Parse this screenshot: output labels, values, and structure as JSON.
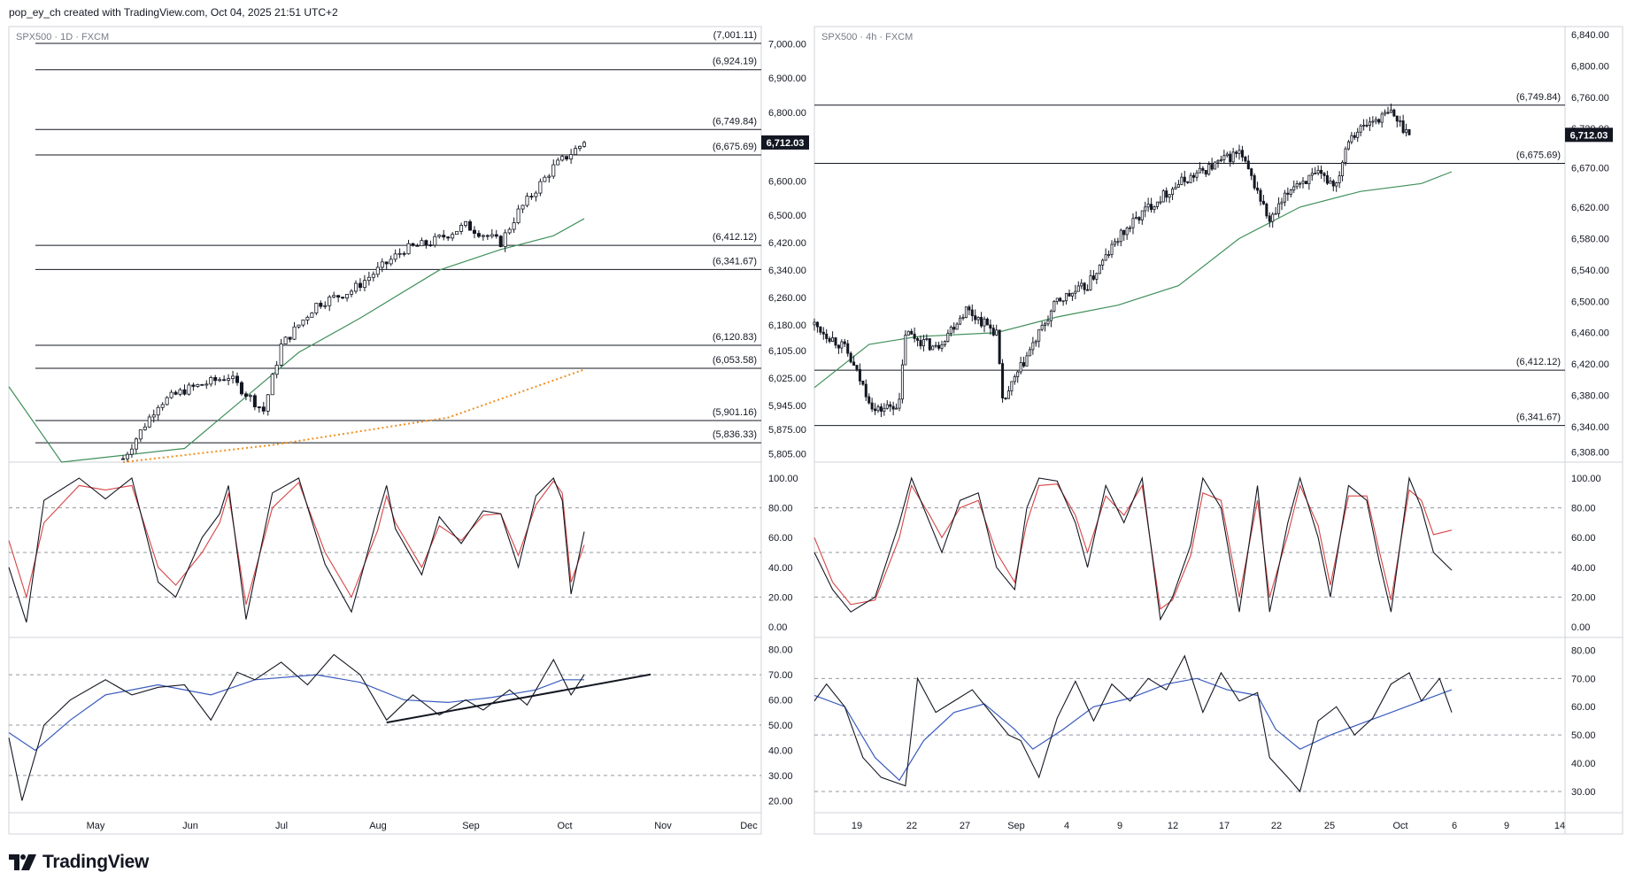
{
  "header": {
    "text": "pop_ey_ch created with TradingView.com, Oct 04, 2025 21:51 UTC+2"
  },
  "brand": {
    "name": "TradingView"
  },
  "colors": {
    "stoch_k": "#131722",
    "stoch_d": "#d64545",
    "rsi": "#131722",
    "rsi_ma": "#3a5bbf",
    "ma50": "#3f8f5a",
    "ma200": "#f0901e",
    "last_label_bg": "#131722"
  },
  "chart_data": [
    {
      "type": "candlestick",
      "title": "SPX500 · 1D · FXCM",
      "price_axis": {
        "range": [
          5780,
          7050
        ],
        "ticks": [
          "7,000.00",
          "6,900.00",
          "6,800.00",
          "6,600.00",
          "6,500.00",
          "6,420.00",
          "6,340.00",
          "6,260.00",
          "6,180.00",
          "6,105.00",
          "6,025.00",
          "5,945.00",
          "5,875.00",
          "5,805.00"
        ]
      },
      "last_price": "6,712.03",
      "horizontal_levels": [
        "(7,001.11)",
        "(6,924.19)",
        "(6,749.84)",
        "(6,675.69)",
        "(6,412.12)",
        "(6,341.67)",
        "(6,120.83)",
        "(6,053.58)",
        "(5,901.16)",
        "(5,836.33)"
      ],
      "ma50_points": [
        [
          0,
          6000
        ],
        [
          12,
          5780
        ],
        [
          40,
          5820
        ],
        [
          66,
          6100
        ],
        [
          80,
          6200
        ],
        [
          98,
          6340
        ],
        [
          112,
          6400
        ],
        [
          124,
          6440
        ],
        [
          131,
          6490
        ]
      ],
      "ma200_points": [
        [
          26,
          5780
        ],
        [
          60,
          5830
        ],
        [
          100,
          5910
        ],
        [
          131,
          6050
        ]
      ],
      "x_labels": [
        "May",
        "Jun",
        "Jul",
        "Aug",
        "Sep",
        "Oct",
        "Nov",
        "Dec"
      ],
      "stochastic": {
        "levels": [
          20,
          50,
          80
        ],
        "ticks": [
          "100.00",
          "80.00",
          "60.00",
          "40.00",
          "20.00",
          "0.00"
        ],
        "k_points": [
          [
            0,
            40
          ],
          [
            4,
            3
          ],
          [
            8,
            85
          ],
          [
            16,
            100
          ],
          [
            22,
            86
          ],
          [
            28,
            100
          ],
          [
            34,
            30
          ],
          [
            38,
            20
          ],
          [
            44,
            60
          ],
          [
            48,
            76
          ],
          [
            50,
            95
          ],
          [
            54,
            5
          ],
          [
            60,
            90
          ],
          [
            66,
            100
          ],
          [
            72,
            42
          ],
          [
            78,
            10
          ],
          [
            84,
            75
          ],
          [
            86,
            95
          ],
          [
            88,
            66
          ],
          [
            94,
            35
          ],
          [
            98,
            74
          ],
          [
            103,
            56
          ],
          [
            108,
            78
          ],
          [
            112,
            76
          ],
          [
            116,
            40
          ],
          [
            120,
            88
          ],
          [
            124,
            100
          ],
          [
            126,
            85
          ],
          [
            128,
            22
          ],
          [
            131,
            64
          ]
        ],
        "d_points": [
          [
            0,
            58
          ],
          [
            4,
            20
          ],
          [
            8,
            70
          ],
          [
            16,
            95
          ],
          [
            22,
            92
          ],
          [
            28,
            95
          ],
          [
            34,
            40
          ],
          [
            38,
            28
          ],
          [
            44,
            50
          ],
          [
            48,
            70
          ],
          [
            50,
            90
          ],
          [
            54,
            15
          ],
          [
            60,
            80
          ],
          [
            66,
            97
          ],
          [
            72,
            50
          ],
          [
            78,
            20
          ],
          [
            84,
            65
          ],
          [
            86,
            88
          ],
          [
            88,
            70
          ],
          [
            94,
            40
          ],
          [
            98,
            68
          ],
          [
            103,
            58
          ],
          [
            108,
            75
          ],
          [
            112,
            76
          ],
          [
            116,
            48
          ],
          [
            120,
            82
          ],
          [
            124,
            98
          ],
          [
            126,
            90
          ],
          [
            128,
            30
          ],
          [
            131,
            55
          ]
        ]
      },
      "rsi": {
        "levels": [
          30,
          50,
          70
        ],
        "ticks": [
          "80.00",
          "70.00",
          "60.00",
          "50.00",
          "40.00",
          "30.00",
          "20.00"
        ],
        "rsi_points": [
          [
            0,
            45
          ],
          [
            3,
            20
          ],
          [
            8,
            50
          ],
          [
            14,
            60
          ],
          [
            22,
            68
          ],
          [
            28,
            62
          ],
          [
            34,
            65
          ],
          [
            40,
            66
          ],
          [
            46,
            52
          ],
          [
            52,
            71
          ],
          [
            56,
            68
          ],
          [
            62,
            75
          ],
          [
            68,
            66
          ],
          [
            74,
            78
          ],
          [
            80,
            70
          ],
          [
            86,
            52
          ],
          [
            92,
            62
          ],
          [
            98,
            54
          ],
          [
            104,
            60
          ],
          [
            108,
            56
          ],
          [
            114,
            64
          ],
          [
            118,
            58
          ],
          [
            124,
            76
          ],
          [
            128,
            62
          ],
          [
            131,
            70
          ]
        ],
        "ma_points": [
          [
            0,
            47
          ],
          [
            6,
            40
          ],
          [
            14,
            52
          ],
          [
            22,
            62
          ],
          [
            34,
            66
          ],
          [
            46,
            62
          ],
          [
            56,
            68
          ],
          [
            70,
            70
          ],
          [
            80,
            67
          ],
          [
            90,
            60
          ],
          [
            100,
            59
          ],
          [
            110,
            61
          ],
          [
            120,
            64
          ],
          [
            126,
            68
          ],
          [
            131,
            68
          ]
        ],
        "trendline_points": [
          [
            86,
            51
          ],
          [
            130,
            65
          ]
        ]
      }
    },
    {
      "type": "candlestick",
      "title": "SPX500 · 4h · FXCM",
      "price_axis": {
        "range": [
          6295,
          6850
        ],
        "ticks": [
          "6,840.00",
          "6,800.00",
          "6,760.00",
          "6,720.00",
          "6,670.00",
          "6,620.00",
          "6,580.00",
          "6,540.00",
          "6,500.00",
          "6,460.00",
          "6,420.00",
          "6,380.00",
          "6,340.00",
          "6,308.00"
        ]
      },
      "last_price": "6,712.03",
      "horizontal_levels": [
        "(6,749.84)",
        "(6,675.69)",
        "(6,412.12)",
        "(6,341.67)"
      ],
      "ma50_points": [
        [
          0,
          6390
        ],
        [
          18,
          6445
        ],
        [
          34,
          6455
        ],
        [
          60,
          6460
        ],
        [
          80,
          6480
        ],
        [
          100,
          6495
        ],
        [
          120,
          6520
        ],
        [
          140,
          6580
        ],
        [
          160,
          6620
        ],
        [
          180,
          6640
        ],
        [
          200,
          6650
        ],
        [
          210,
          6665
        ]
      ],
      "x_labels": [
        "19",
        "22",
        "27",
        "Sep",
        "4",
        "9",
        "12",
        "17",
        "22",
        "25",
        "Oct",
        "6",
        "9",
        "14"
      ],
      "stochastic": {
        "levels": [
          20,
          50,
          80
        ],
        "ticks": [
          "100.00",
          "80.00",
          "60.00",
          "40.00",
          "20.00",
          "0.00"
        ],
        "k_points": [
          [
            0,
            50
          ],
          [
            6,
            25
          ],
          [
            12,
            10
          ],
          [
            20,
            20
          ],
          [
            28,
            70
          ],
          [
            32,
            100
          ],
          [
            38,
            70
          ],
          [
            42,
            50
          ],
          [
            48,
            85
          ],
          [
            54,
            90
          ],
          [
            60,
            40
          ],
          [
            66,
            25
          ],
          [
            70,
            80
          ],
          [
            74,
            100
          ],
          [
            80,
            98
          ],
          [
            86,
            70
          ],
          [
            90,
            40
          ],
          [
            96,
            95
          ],
          [
            102,
            70
          ],
          [
            108,
            100
          ],
          [
            114,
            5
          ],
          [
            118,
            20
          ],
          [
            124,
            55
          ],
          [
            128,
            100
          ],
          [
            134,
            80
          ],
          [
            140,
            10
          ],
          [
            146,
            95
          ],
          [
            150,
            10
          ],
          [
            156,
            70
          ],
          [
            160,
            100
          ],
          [
            166,
            60
          ],
          [
            170,
            20
          ],
          [
            176,
            95
          ],
          [
            182,
            85
          ],
          [
            186,
            45
          ],
          [
            190,
            10
          ],
          [
            196,
            100
          ],
          [
            200,
            80
          ],
          [
            204,
            50
          ],
          [
            210,
            38
          ]
        ],
        "d_points": [
          [
            0,
            60
          ],
          [
            6,
            30
          ],
          [
            12,
            15
          ],
          [
            20,
            18
          ],
          [
            28,
            60
          ],
          [
            32,
            95
          ],
          [
            38,
            75
          ],
          [
            42,
            60
          ],
          [
            48,
            80
          ],
          [
            54,
            85
          ],
          [
            60,
            50
          ],
          [
            66,
            30
          ],
          [
            70,
            70
          ],
          [
            74,
            95
          ],
          [
            80,
            96
          ],
          [
            86,
            75
          ],
          [
            90,
            50
          ],
          [
            96,
            88
          ],
          [
            102,
            75
          ],
          [
            108,
            95
          ],
          [
            114,
            12
          ],
          [
            118,
            18
          ],
          [
            124,
            48
          ],
          [
            128,
            90
          ],
          [
            134,
            85
          ],
          [
            140,
            20
          ],
          [
            146,
            85
          ],
          [
            150,
            20
          ],
          [
            156,
            62
          ],
          [
            160,
            95
          ],
          [
            166,
            68
          ],
          [
            170,
            28
          ],
          [
            176,
            88
          ],
          [
            182,
            88
          ],
          [
            186,
            52
          ],
          [
            190,
            18
          ],
          [
            196,
            92
          ],
          [
            200,
            85
          ],
          [
            204,
            62
          ],
          [
            210,
            65
          ]
        ]
      },
      "rsi": {
        "levels": [
          30,
          50,
          70
        ],
        "ticks": [
          "80.00",
          "70.00",
          "60.00",
          "50.00",
          "40.00",
          "30.00"
        ],
        "rsi_points": [
          [
            0,
            62
          ],
          [
            4,
            68
          ],
          [
            10,
            60
          ],
          [
            16,
            42
          ],
          [
            22,
            35
          ],
          [
            30,
            32
          ],
          [
            34,
            70
          ],
          [
            40,
            58
          ],
          [
            46,
            62
          ],
          [
            52,
            66
          ],
          [
            58,
            58
          ],
          [
            64,
            50
          ],
          [
            68,
            48
          ],
          [
            74,
            35
          ],
          [
            80,
            56
          ],
          [
            86,
            69
          ],
          [
            92,
            55
          ],
          [
            98,
            68
          ],
          [
            104,
            62
          ],
          [
            110,
            70
          ],
          [
            116,
            66
          ],
          [
            122,
            78
          ],
          [
            128,
            58
          ],
          [
            134,
            72
          ],
          [
            140,
            62
          ],
          [
            146,
            65
          ],
          [
            150,
            42
          ],
          [
            156,
            35
          ],
          [
            160,
            30
          ],
          [
            166,
            55
          ],
          [
            172,
            60
          ],
          [
            178,
            50
          ],
          [
            184,
            56
          ],
          [
            190,
            68
          ],
          [
            196,
            72
          ],
          [
            200,
            62
          ],
          [
            206,
            70
          ],
          [
            210,
            58
          ]
        ],
        "ma_points": [
          [
            0,
            64
          ],
          [
            10,
            60
          ],
          [
            20,
            42
          ],
          [
            28,
            34
          ],
          [
            36,
            48
          ],
          [
            46,
            58
          ],
          [
            56,
            61
          ],
          [
            66,
            52
          ],
          [
            72,
            45
          ],
          [
            82,
            52
          ],
          [
            92,
            60
          ],
          [
            104,
            63
          ],
          [
            116,
            68
          ],
          [
            126,
            70
          ],
          [
            136,
            66
          ],
          [
            146,
            64
          ],
          [
            152,
            52
          ],
          [
            160,
            45
          ],
          [
            170,
            50
          ],
          [
            180,
            54
          ],
          [
            190,
            58
          ],
          [
            200,
            62
          ],
          [
            210,
            66
          ]
        ]
      }
    }
  ]
}
